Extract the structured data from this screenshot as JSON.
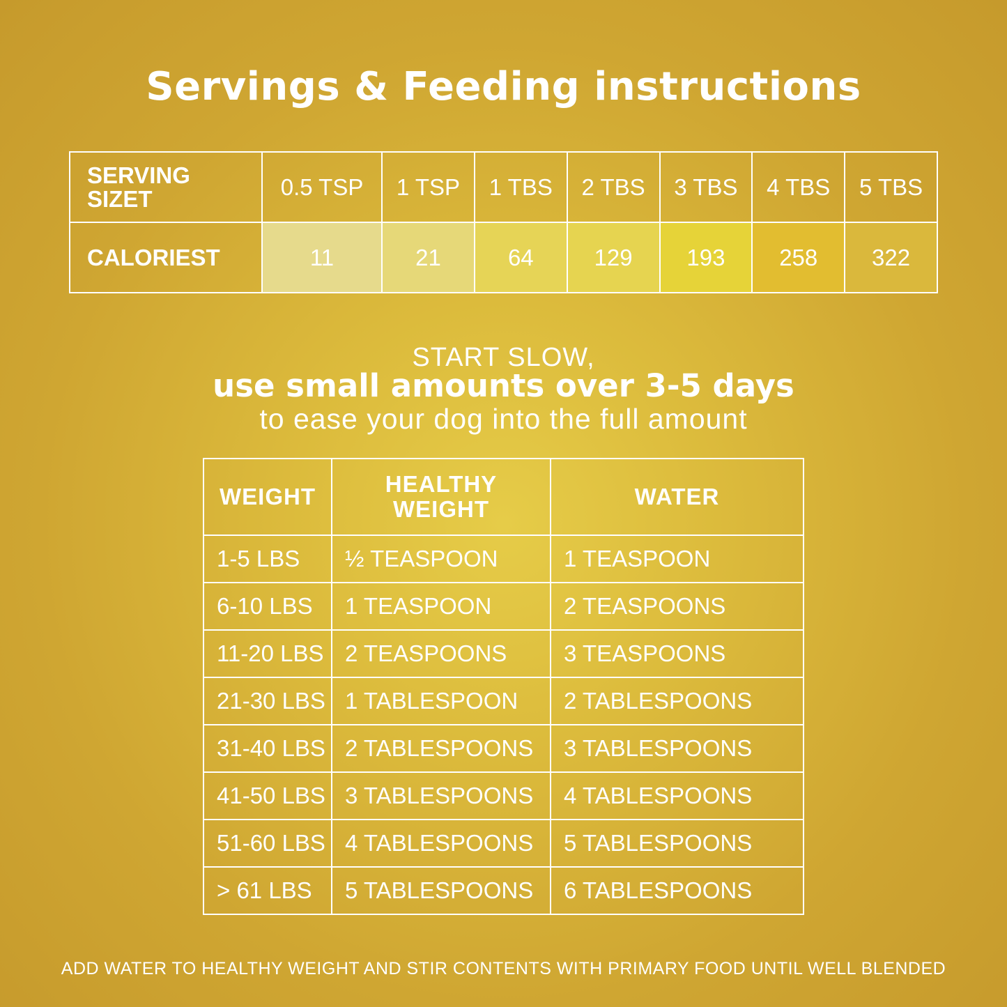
{
  "title": "Servings & Feeding instructions",
  "serving_table": {
    "serving_label": "SERVING SIZET",
    "calories_label": "CALORIEST",
    "sizes": [
      "0.5 TSP",
      "1 TSP",
      "1 TBS",
      "2 TBS",
      "3 TBS",
      "4 TBS",
      "5 TBS"
    ],
    "calories": [
      "11",
      "21",
      "64",
      "129",
      "193",
      "258",
      "322"
    ],
    "calorie_cell_colors": [
      "#e6da8c",
      "#e6d878",
      "#e6d456",
      "#e6d450",
      "#e6d338",
      "#e2bd30",
      "#dab83c"
    ]
  },
  "intro": {
    "line1": "START SLOW,",
    "line2": "use small amounts over 3-5 days",
    "line3": "to ease your dog into the full amount"
  },
  "feeding_table": {
    "headers": [
      "WEIGHT",
      "HEALTHY WEIGHT",
      "WATER"
    ],
    "rows": [
      [
        "1-5 LBS",
        "½ TEASPOON",
        "1 TEASPOON"
      ],
      [
        "6-10 LBS",
        "1 TEASPOON",
        "2 TEASPOONS"
      ],
      [
        "11-20 LBS",
        "2 TEASPOONS",
        "3 TEASPOONS"
      ],
      [
        "21-30 LBS",
        "1 TABLESPOON",
        "2 TABLESPOONS"
      ],
      [
        "31-40 LBS",
        "2 TABLESPOONS",
        "3 TABLESPOONS"
      ],
      [
        "41-50 LBS",
        "3 TABLESPOONS",
        "4 TABLESPOONS"
      ],
      [
        "51-60 LBS",
        "4 TABLESPOONS",
        "5 TABLESPOONS"
      ],
      [
        "> 61 LBS",
        "5 TABLESPOONS",
        "6 TABLESPOONS"
      ]
    ]
  },
  "footnote": "ADD WATER TO HEALTHY WEIGHT AND STIR CONTENTS WITH PRIMARY FOOD UNTIL WELL BLENDED"
}
